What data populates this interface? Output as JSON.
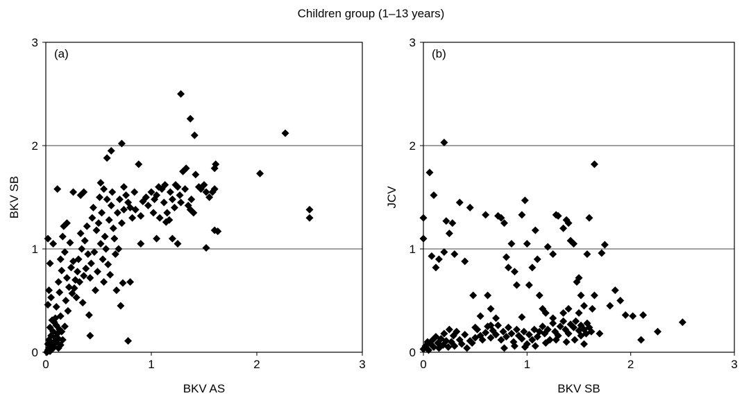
{
  "figure_title": "Children group (1–13 years)",
  "marker_color": "#000000",
  "chart_data": [
    {
      "type": "scatter",
      "panel_label": "(a)",
      "xlabel": "BKV AS",
      "ylabel": "BKV SB",
      "xlim": [
        0,
        3
      ],
      "ylim": [
        0,
        3
      ],
      "xticks": [
        0,
        1,
        2,
        3
      ],
      "yticks": [
        0,
        1,
        2,
        3
      ],
      "gridlines_y": [
        1,
        2
      ],
      "points": [
        [
          0.01,
          0.0
        ],
        [
          0.02,
          0.02
        ],
        [
          0.03,
          0.04
        ],
        [
          0.04,
          0.01
        ],
        [
          0.05,
          0.06
        ],
        [
          0.02,
          0.08
        ],
        [
          0.06,
          0.03
        ],
        [
          0.07,
          0.09
        ],
        [
          0.03,
          0.12
        ],
        [
          0.08,
          0.05
        ],
        [
          0.09,
          0.14
        ],
        [
          0.05,
          0.16
        ],
        [
          0.1,
          0.1
        ],
        [
          0.11,
          0.18
        ],
        [
          0.07,
          0.2
        ],
        [
          0.12,
          0.13
        ],
        [
          0.13,
          0.22
        ],
        [
          0.04,
          0.24
        ],
        [
          0.14,
          0.07
        ],
        [
          0.1,
          0.26
        ],
        [
          0.15,
          0.2
        ],
        [
          0.08,
          0.29
        ],
        [
          0.16,
          0.12
        ],
        [
          0.06,
          0.31
        ],
        [
          0.18,
          0.25
        ],
        [
          0.12,
          0.04
        ],
        [
          0.02,
          0.46
        ],
        [
          0.03,
          0.6
        ],
        [
          0.05,
          0.53
        ],
        [
          0.09,
          0.33
        ],
        [
          0.14,
          0.35
        ],
        [
          0.04,
          0.86
        ],
        [
          0.02,
          1.1
        ],
        [
          0.07,
          1.05
        ],
        [
          0.11,
          1.58
        ],
        [
          0.1,
          0.44
        ],
        [
          0.13,
          0.58
        ],
        [
          0.12,
          0.68
        ],
        [
          0.15,
          0.79
        ],
        [
          0.14,
          0.9
        ],
        [
          0.18,
          0.97
        ],
        [
          0.16,
          1.12
        ],
        [
          0.2,
          1.25
        ],
        [
          0.23,
          1.06
        ],
        [
          0.19,
          0.5
        ],
        [
          0.22,
          0.63
        ],
        [
          0.25,
          0.57
        ],
        [
          0.2,
          0.72
        ],
        [
          0.24,
          0.82
        ],
        [
          0.26,
          0.88
        ],
        [
          0.21,
          0.4
        ],
        [
          0.28,
          0.7
        ],
        [
          0.27,
          0.62
        ],
        [
          0.3,
          0.78
        ],
        [
          0.29,
          0.53
        ],
        [
          0.32,
          0.68
        ],
        [
          0.31,
          0.9
        ],
        [
          0.34,
          1.0
        ],
        [
          0.33,
          1.15
        ],
        [
          0.36,
          0.74
        ],
        [
          0.35,
          0.48
        ],
        [
          0.38,
          0.81
        ],
        [
          0.37,
          1.08
        ],
        [
          0.4,
          0.95
        ],
        [
          0.39,
          1.22
        ],
        [
          0.42,
          0.72
        ],
        [
          0.41,
          0.36
        ],
        [
          0.44,
          1.3
        ],
        [
          0.43,
          0.86
        ],
        [
          0.46,
          0.97
        ],
        [
          0.45,
          1.4
        ],
        [
          0.48,
          1.18
        ],
        [
          0.47,
          0.6
        ],
        [
          0.5,
          1.25
        ],
        [
          0.49,
          0.78
        ],
        [
          0.52,
          1.05
        ],
        [
          0.51,
          1.5
        ],
        [
          0.54,
          0.9
        ],
        [
          0.53,
          1.35
        ],
        [
          0.56,
          1.12
        ],
        [
          0.55,
          0.68
        ],
        [
          0.58,
          1.48
        ],
        [
          0.57,
          1.0
        ],
        [
          0.6,
          1.28
        ],
        [
          0.59,
          0.85
        ],
        [
          0.62,
          1.42
        ],
        [
          0.61,
          0.75
        ],
        [
          0.64,
          1.2
        ],
        [
          0.63,
          1.55
        ],
        [
          0.66,
          0.95
        ],
        [
          0.65,
          1.1
        ],
        [
          0.68,
          1.35
        ],
        [
          0.67,
          0.6
        ],
        [
          0.7,
          1.48
        ],
        [
          0.69,
          1.0
        ],
        [
          0.72,
          1.25
        ],
        [
          0.71,
          0.45
        ],
        [
          0.74,
          1.38
        ],
        [
          0.73,
          0.67
        ],
        [
          0.76,
          1.52
        ],
        [
          0.17,
          1.22
        ],
        [
          0.26,
          1.55
        ],
        [
          0.33,
          1.52
        ],
        [
          0.36,
          1.55
        ],
        [
          0.52,
          1.64
        ],
        [
          0.55,
          1.58
        ],
        [
          0.58,
          1.88
        ],
        [
          0.62,
          1.95
        ],
        [
          0.72,
          2.02
        ],
        [
          0.74,
          1.6
        ],
        [
          0.78,
          1.45
        ],
        [
          0.8,
          1.4
        ],
        [
          0.82,
          1.3
        ],
        [
          0.84,
          1.55
        ],
        [
          0.85,
          1.38
        ],
        [
          0.88,
          1.82
        ],
        [
          0.9,
          1.32
        ],
        [
          0.92,
          1.46
        ],
        [
          0.95,
          1.5
        ],
        [
          0.97,
          1.42
        ],
        [
          1.0,
          1.55
        ],
        [
          1.02,
          1.35
        ],
        [
          1.03,
          1.48
        ],
        [
          1.05,
          1.52
        ],
        [
          1.07,
          1.6
        ],
        [
          1.08,
          1.3
        ],
        [
          1.1,
          1.58
        ],
        [
          1.12,
          1.45
        ],
        [
          1.13,
          1.62
        ],
        [
          1.15,
          1.35
        ],
        [
          1.17,
          1.28
        ],
        [
          1.18,
          1.55
        ],
        [
          1.2,
          1.48
        ],
        [
          1.22,
          1.4
        ],
        [
          1.23,
          1.62
        ],
        [
          1.25,
          1.6
        ],
        [
          1.27,
          1.52
        ],
        [
          1.28,
          1.45
        ],
        [
          1.3,
          1.75
        ],
        [
          1.32,
          1.58
        ],
        [
          1.33,
          1.78
        ],
        [
          1.35,
          1.42
        ],
        [
          1.37,
          1.38
        ],
        [
          1.38,
          1.48
        ],
        [
          1.4,
          1.35
        ],
        [
          1.42,
          1.72
        ],
        [
          1.45,
          1.6
        ],
        [
          1.47,
          1.58
        ],
        [
          1.5,
          1.62
        ],
        [
          1.52,
          1.55
        ],
        [
          1.55,
          1.5
        ],
        [
          1.58,
          1.55
        ],
        [
          1.6,
          1.58
        ],
        [
          1.6,
          1.78
        ],
        [
          1.61,
          1.82
        ],
        [
          1.6,
          1.18
        ],
        [
          1.63,
          1.17
        ],
        [
          1.52,
          1.01
        ],
        [
          1.14,
          1.26
        ],
        [
          1.2,
          1.1
        ],
        [
          1.25,
          1.05
        ],
        [
          1.05,
          1.1
        ],
        [
          0.9,
          1.05
        ],
        [
          0.8,
          0.68
        ],
        [
          0.78,
          0.11
        ],
        [
          0.42,
          0.16
        ],
        [
          1.28,
          2.5
        ],
        [
          1.37,
          2.26
        ],
        [
          1.41,
          2.1
        ],
        [
          2.27,
          2.12
        ],
        [
          2.03,
          1.73
        ],
        [
          2.5,
          1.38
        ],
        [
          2.5,
          1.3
        ]
      ]
    },
    {
      "type": "scatter",
      "panel_label": "(b)",
      "xlabel": "BKV SB",
      "ylabel": "JCV",
      "xlim": [
        0,
        3
      ],
      "ylim": [
        0,
        3
      ],
      "xticks": [
        0,
        1,
        2,
        3
      ],
      "yticks": [
        0,
        1,
        2,
        3
      ],
      "gridlines_y": [
        1,
        2
      ],
      "points": [
        [
          0.0,
          0.03
        ],
        [
          0.02,
          0.06
        ],
        [
          0.04,
          0.1
        ],
        [
          0.05,
          0.02
        ],
        [
          0.07,
          0.08
        ],
        [
          0.09,
          0.12
        ],
        [
          0.1,
          0.05
        ],
        [
          0.12,
          0.15
        ],
        [
          0.14,
          0.09
        ],
        [
          0.15,
          0.04
        ],
        [
          0.17,
          0.13
        ],
        [
          0.19,
          0.07
        ],
        [
          0.2,
          0.18
        ],
        [
          0.22,
          0.11
        ],
        [
          0.24,
          0.05
        ],
        [
          0.25,
          0.22
        ],
        [
          0.27,
          0.1
        ],
        [
          0.29,
          0.16
        ],
        [
          0.3,
          0.06
        ],
        [
          0.32,
          0.2
        ],
        [
          0.35,
          0.12
        ],
        [
          0.37,
          0.08
        ],
        [
          0.4,
          0.17
        ],
        [
          0.42,
          0.04
        ],
        [
          0.45,
          0.11
        ],
        [
          0.47,
          0.09
        ],
        [
          0.5,
          0.14
        ],
        [
          0.52,
          0.22
        ],
        [
          0.55,
          0.16
        ],
        [
          0.57,
          0.12
        ],
        [
          0.6,
          0.19
        ],
        [
          0.62,
          0.25
        ],
        [
          0.65,
          0.14
        ],
        [
          0.67,
          0.21
        ],
        [
          0.7,
          0.17
        ],
        [
          0.72,
          0.26
        ],
        [
          0.75,
          0.12
        ],
        [
          0.77,
          0.2
        ],
        [
          0.8,
          0.15
        ],
        [
          0.82,
          0.24
        ],
        [
          0.85,
          0.18
        ],
        [
          0.87,
          0.1
        ],
        [
          0.9,
          0.22
        ],
        [
          0.92,
          0.16
        ],
        [
          0.95,
          0.13
        ],
        [
          0.97,
          0.2
        ],
        [
          1.0,
          0.08
        ],
        [
          1.02,
          0.17
        ],
        [
          1.05,
          0.12
        ],
        [
          1.07,
          0.22
        ],
        [
          1.1,
          0.15
        ],
        [
          1.12,
          0.2
        ],
        [
          1.15,
          0.25
        ],
        [
          1.17,
          0.18
        ],
        [
          1.2,
          0.22
        ],
        [
          1.22,
          0.12
        ],
        [
          1.25,
          0.28
        ],
        [
          1.27,
          0.2
        ],
        [
          1.3,
          0.16
        ],
        [
          1.32,
          0.25
        ],
        [
          1.35,
          0.3
        ],
        [
          1.37,
          0.22
        ],
        [
          1.4,
          0.18
        ],
        [
          1.42,
          0.27
        ],
        [
          1.45,
          0.24
        ],
        [
          1.47,
          0.3
        ],
        [
          1.5,
          0.21
        ],
        [
          1.52,
          0.26
        ],
        [
          1.55,
          0.22
        ],
        [
          1.57,
          0.18
        ],
        [
          1.58,
          0.28
        ],
        [
          1.6,
          0.24
        ],
        [
          1.62,
          0.2
        ],
        [
          1.52,
          0.16
        ],
        [
          1.46,
          0.12
        ],
        [
          1.38,
          0.1
        ],
        [
          1.28,
          0.12
        ],
        [
          1.18,
          0.09
        ],
        [
          0.98,
          0.05
        ],
        [
          0.88,
          0.06
        ],
        [
          0.78,
          0.04
        ],
        [
          1.08,
          0.06
        ],
        [
          1.55,
          0.08
        ],
        [
          0.0,
          1.3
        ],
        [
          0.0,
          1.1
        ],
        [
          0.06,
          1.74
        ],
        [
          0.08,
          0.93
        ],
        [
          0.1,
          1.52
        ],
        [
          0.12,
          0.82
        ],
        [
          0.15,
          0.9
        ],
        [
          0.2,
          0.97
        ],
        [
          0.22,
          1.27
        ],
        [
          0.25,
          1.15
        ],
        [
          0.28,
          1.25
        ],
        [
          0.3,
          0.95
        ],
        [
          0.35,
          1.45
        ],
        [
          0.4,
          0.88
        ],
        [
          0.45,
          1.4
        ],
        [
          0.48,
          0.55
        ],
        [
          0.55,
          0.35
        ],
        [
          0.6,
          1.33
        ],
        [
          0.62,
          0.55
        ],
        [
          0.65,
          0.42
        ],
        [
          0.7,
          0.33
        ],
        [
          0.72,
          1.32
        ],
        [
          0.75,
          1.3
        ],
        [
          0.78,
          1.25
        ],
        [
          0.8,
          0.92
        ],
        [
          0.82,
          0.82
        ],
        [
          0.85,
          1.05
        ],
        [
          0.88,
          0.78
        ],
        [
          0.9,
          0.65
        ],
        [
          0.95,
          1.33
        ],
        [
          0.98,
          1.47
        ],
        [
          1.0,
          1.05
        ],
        [
          1.02,
          0.65
        ],
        [
          1.05,
          0.82
        ],
        [
          1.08,
          1.18
        ],
        [
          1.1,
          0.9
        ],
        [
          1.12,
          0.55
        ],
        [
          1.15,
          0.42
        ],
        [
          1.18,
          0.38
        ],
        [
          1.2,
          1.02
        ],
        [
          1.25,
          0.95
        ],
        [
          1.28,
          1.33
        ],
        [
          1.3,
          1.32
        ],
        [
          1.35,
          1.2
        ],
        [
          1.38,
          1.28
        ],
        [
          1.4,
          1.25
        ],
        [
          1.42,
          1.08
        ],
        [
          1.45,
          1.05
        ],
        [
          1.48,
          0.68
        ],
        [
          1.5,
          0.72
        ],
        [
          1.52,
          0.55
        ],
        [
          1.55,
          0.45
        ],
        [
          1.58,
          0.95
        ],
        [
          1.6,
          1.3
        ],
        [
          1.63,
          0.42
        ],
        [
          1.65,
          0.55
        ],
        [
          1.7,
          0.18
        ],
        [
          1.72,
          0.96
        ],
        [
          1.75,
          1.04
        ],
        [
          1.8,
          0.45
        ],
        [
          1.85,
          0.6
        ],
        [
          1.9,
          0.5
        ],
        [
          1.95,
          0.36
        ],
        [
          2.02,
          0.35
        ],
        [
          2.1,
          0.12
        ],
        [
          2.12,
          0.36
        ],
        [
          2.26,
          0.2
        ],
        [
          2.5,
          0.29
        ],
        [
          1.65,
          1.82
        ],
        [
          0.2,
          2.03
        ],
        [
          1.5,
          0.38
        ],
        [
          1.4,
          0.42
        ],
        [
          1.35,
          0.38
        ],
        [
          1.25,
          0.33
        ],
        [
          0.95,
          0.34
        ],
        [
          0.65,
          0.26
        ],
        [
          0.5,
          0.24
        ]
      ]
    }
  ]
}
